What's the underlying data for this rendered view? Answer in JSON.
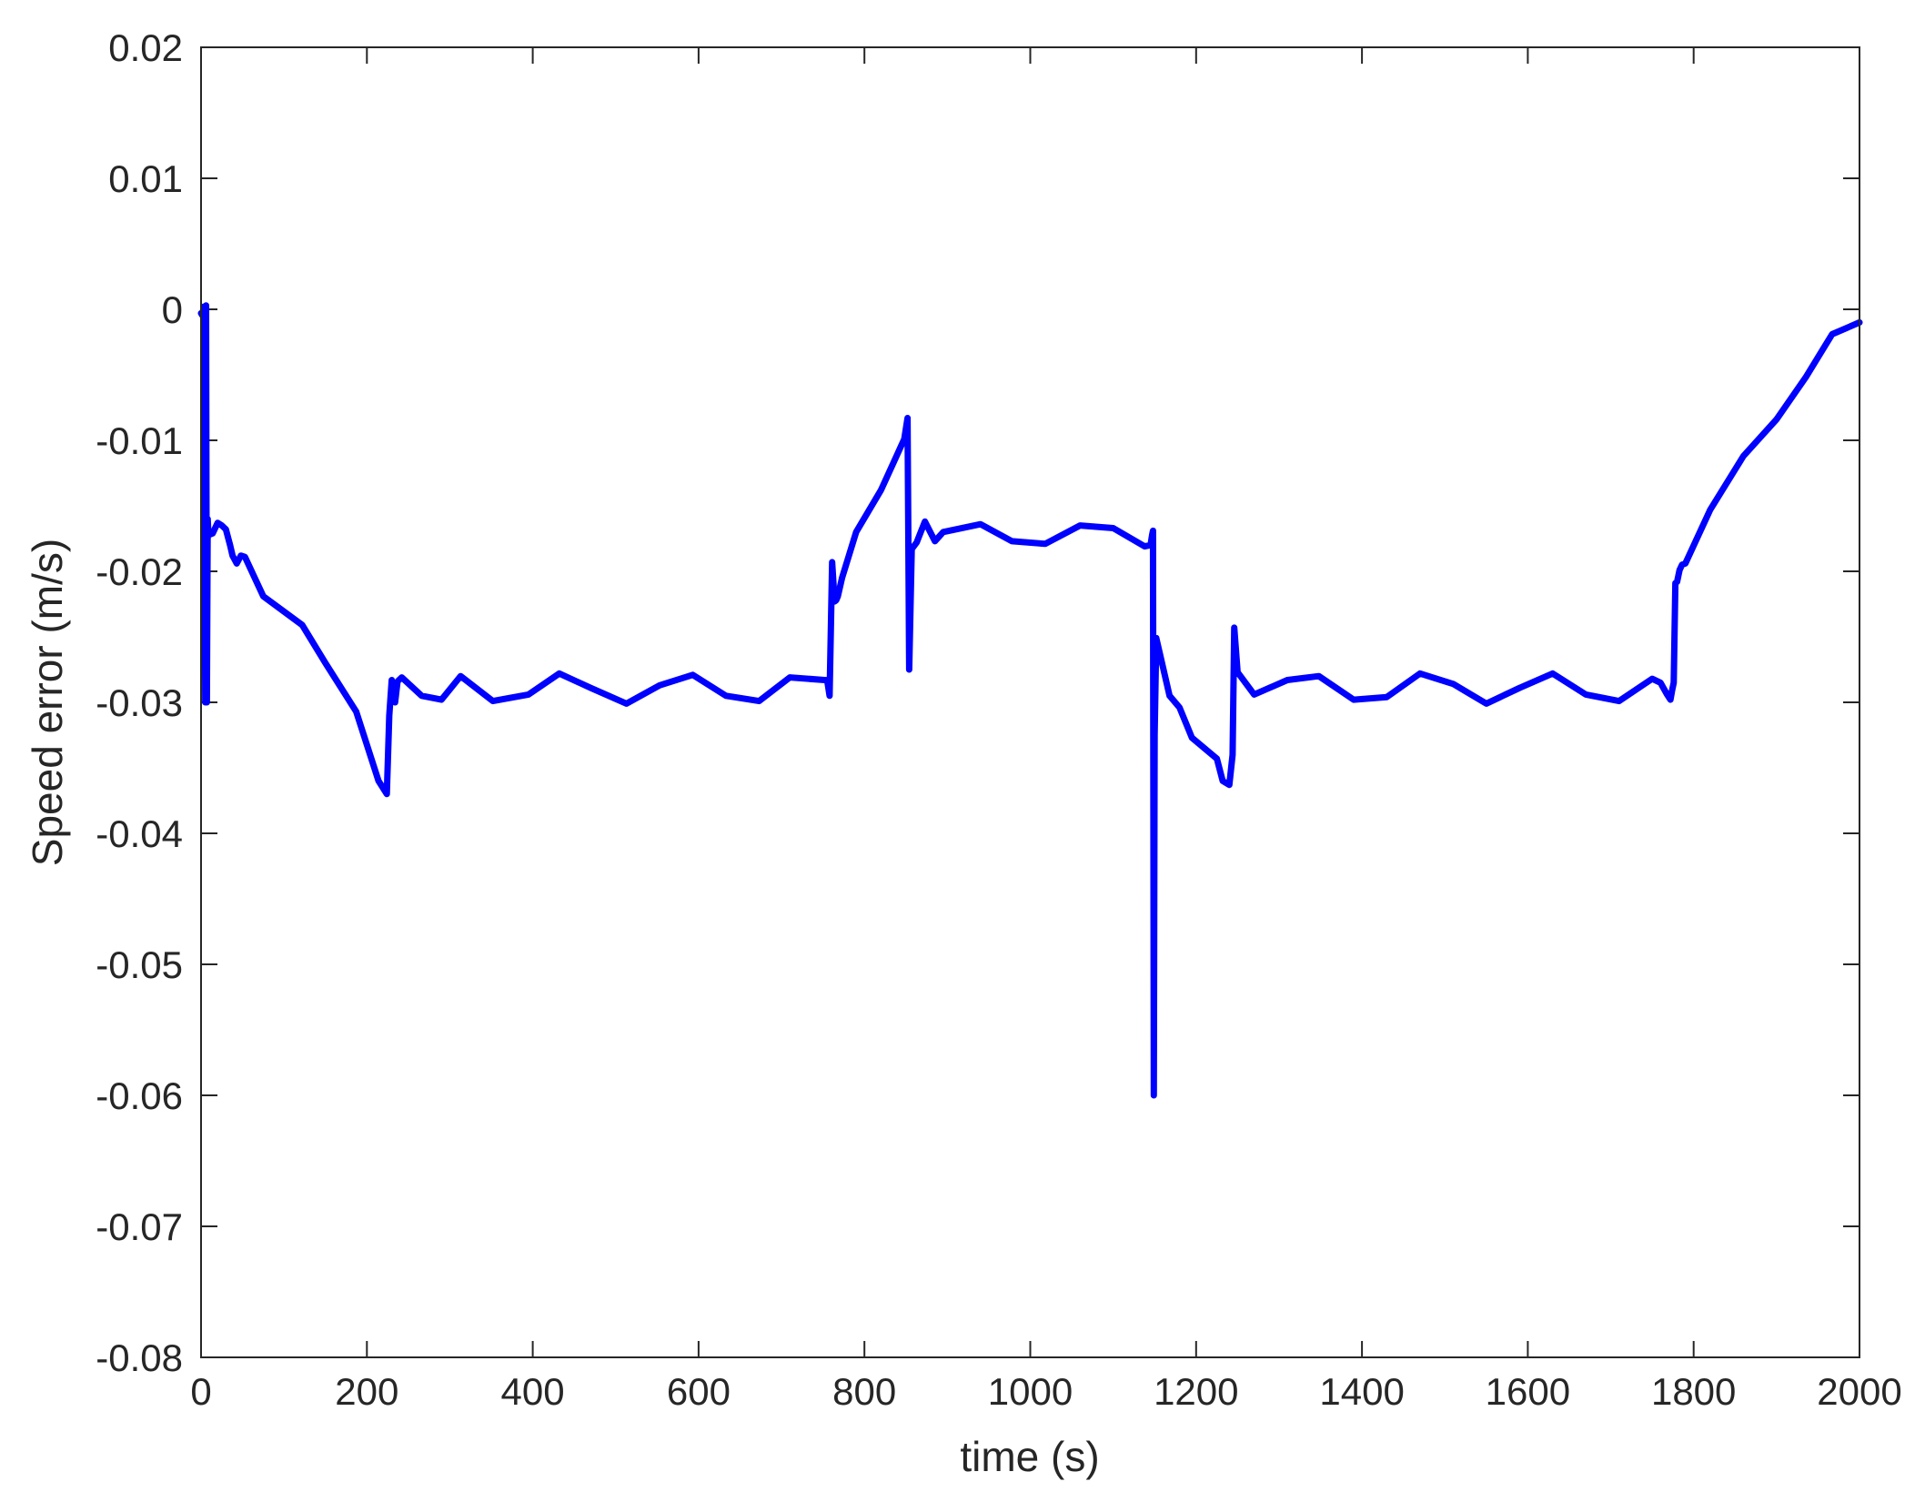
{
  "chart_data": {
    "type": "line",
    "title": "",
    "xlabel": "time (s)",
    "ylabel": "Speed error (m/s)",
    "xlim": [
      0,
      2000
    ],
    "ylim": [
      -0.08,
      0.02
    ],
    "xticks": [
      0,
      200,
      400,
      600,
      800,
      1000,
      1200,
      1400,
      1600,
      1800,
      2000
    ],
    "xtick_labels": [
      "0",
      "200",
      "400",
      "600",
      "800",
      "1000",
      "1200",
      "1400",
      "1600",
      "1800",
      "2000"
    ],
    "yticks": [
      0.02,
      0.01,
      0,
      -0.01,
      -0.02,
      -0.03,
      -0.04,
      -0.05,
      -0.06,
      -0.07,
      -0.08
    ],
    "ytick_labels": [
      "0.02",
      "0.01",
      "0",
      "-0.01",
      "-0.02",
      "-0.03",
      "-0.04",
      "-0.05",
      "-0.06",
      "-0.07",
      "-0.08"
    ],
    "grid": false,
    "line_color": "#0000ff",
    "series": [
      {
        "x": [
          0,
          2,
          3,
          4,
          5,
          6,
          7,
          8,
          9,
          10,
          14,
          20,
          25,
          30,
          35,
          38,
          43,
          48,
          53,
          75,
          122,
          150,
          187,
          214,
          224,
          227,
          230,
          234,
          237,
          242,
          266,
          290,
          313,
          352,
          395,
          432,
          470,
          513,
          553,
          593,
          633,
          673,
          710,
          752,
          755,
          758,
          761,
          764,
          766,
          768,
          773,
          790,
          820,
          848,
          852,
          854,
          857,
          863,
          873,
          885,
          895,
          940,
          978,
          1018,
          1060,
          1100,
          1138,
          1145,
          1147,
          1148,
          1149,
          1150,
          1152,
          1168,
          1180,
          1195,
          1225,
          1232,
          1240,
          1244,
          1246,
          1250,
          1270,
          1310,
          1348,
          1390,
          1430,
          1470,
          1510,
          1550,
          1590,
          1630,
          1670,
          1710,
          1750,
          1760,
          1768,
          1772,
          1774,
          1776,
          1778,
          1780,
          1783,
          1786,
          1790,
          1820,
          1860,
          1900,
          1935,
          1967,
          2000
        ],
        "y": [
          -0.0003,
          -0.0005,
          0.0002,
          -0.0005,
          -0.03,
          0.0003,
          -0.03,
          -0.016,
          -0.0173,
          -0.0172,
          -0.0171,
          -0.0163,
          -0.0165,
          -0.0168,
          -0.018,
          -0.0188,
          -0.0194,
          -0.0188,
          -0.0189,
          -0.0219,
          -0.0241,
          -0.027,
          -0.0307,
          -0.036,
          -0.037,
          -0.031,
          -0.0283,
          -0.03,
          -0.0284,
          -0.0281,
          -0.0295,
          -0.0298,
          -0.028,
          -0.0299,
          -0.0294,
          -0.0278,
          -0.0289,
          -0.0301,
          -0.0287,
          -0.0279,
          -0.0295,
          -0.0299,
          -0.0281,
          -0.0283,
          -0.0283,
          -0.0295,
          -0.0193,
          -0.0223,
          -0.0222,
          -0.0219,
          -0.0205,
          -0.017,
          -0.0138,
          -0.0099,
          -0.0083,
          -0.0275,
          -0.0183,
          -0.0178,
          -0.0162,
          -0.0177,
          -0.017,
          -0.0164,
          -0.0177,
          -0.0179,
          -0.0165,
          -0.0167,
          -0.0181,
          -0.018,
          -0.0172,
          -0.0169,
          -0.06,
          -0.0325,
          -0.0251,
          -0.0295,
          -0.0304,
          -0.0327,
          -0.0343,
          -0.036,
          -0.0363,
          -0.034,
          -0.0243,
          -0.0277,
          -0.0294,
          -0.0283,
          -0.028,
          -0.0298,
          -0.0296,
          -0.0278,
          -0.0286,
          -0.0301,
          -0.0289,
          -0.0278,
          -0.0294,
          -0.0299,
          -0.0282,
          -0.0285,
          -0.0294,
          -0.0298,
          -0.0291,
          -0.0285,
          -0.0209,
          -0.0208,
          -0.0199,
          -0.0195,
          -0.0194,
          -0.0153,
          -0.0112,
          -0.0084,
          -0.0052,
          -0.0019,
          -0.001
        ]
      }
    ]
  }
}
